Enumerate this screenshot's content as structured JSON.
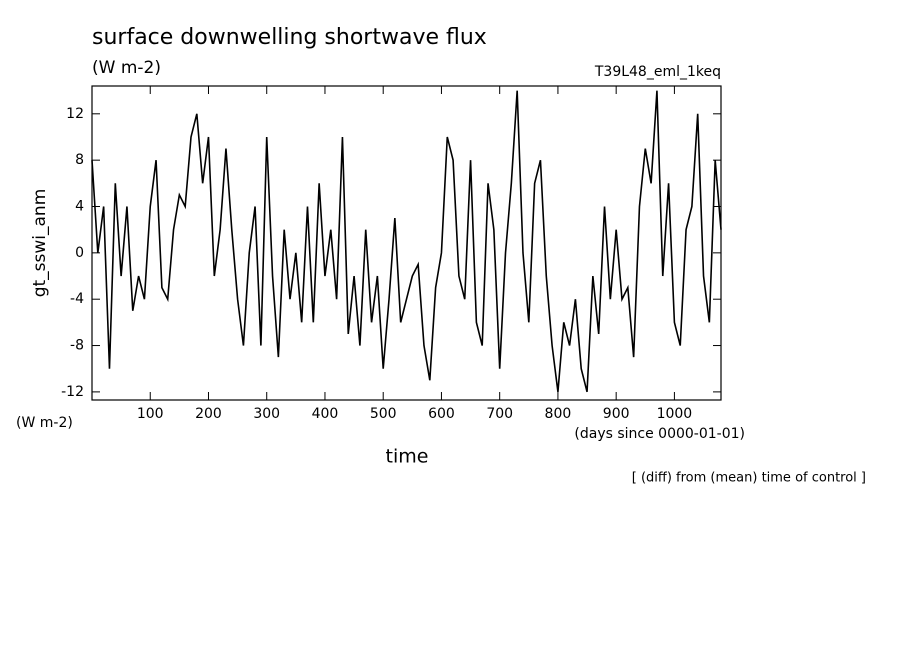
{
  "chart_data": {
    "type": "line",
    "title": "surface downwelling shortwave flux",
    "subtitle": "(W m-2)",
    "run_label": "T39L48_eml_1keq",
    "y_label": "gt_sswi_anm",
    "y_units": "(W m-2)",
    "x_label": "time",
    "x_units": "(days since 0000-01-01)",
    "note": "[ (diff) from (mean) time of control ]",
    "color": "#000000",
    "xlim": [
      0,
      1080
    ],
    "ylim": [
      -12.7,
      14.4
    ],
    "xticks": [
      100,
      200,
      300,
      400,
      500,
      600,
      700,
      800,
      900,
      1000
    ],
    "yticks": [
      -12,
      -8,
      -4,
      0,
      4,
      8,
      12
    ],
    "x": [
      0,
      10,
      20,
      30,
      40,
      50,
      60,
      70,
      80,
      90,
      100,
      110,
      120,
      130,
      140,
      150,
      160,
      170,
      180,
      190,
      200,
      210,
      220,
      230,
      240,
      250,
      260,
      270,
      280,
      290,
      300,
      310,
      320,
      330,
      340,
      350,
      360,
      370,
      380,
      390,
      400,
      410,
      420,
      430,
      440,
      450,
      460,
      470,
      480,
      490,
      500,
      510,
      520,
      530,
      540,
      550,
      560,
      570,
      580,
      590,
      600,
      610,
      620,
      630,
      640,
      650,
      660,
      670,
      680,
      690,
      700,
      710,
      720,
      730,
      740,
      750,
      760,
      770,
      780,
      790,
      800,
      810,
      820,
      830,
      840,
      850,
      860,
      870,
      880,
      890,
      900,
      910,
      920,
      930,
      940,
      950,
      960,
      970,
      980,
      990,
      1000,
      1010,
      1020,
      1030,
      1040,
      1050,
      1060,
      1070,
      1080
    ],
    "values": [
      8,
      0,
      4,
      -10,
      6,
      -2,
      4,
      -5,
      -2,
      -4,
      4,
      8,
      -3,
      -4,
      2,
      5,
      4,
      10,
      12,
      6,
      10,
      -2,
      2,
      9,
      2,
      -4,
      -8,
      0,
      4,
      -8,
      10,
      -2,
      -9,
      2,
      -4,
      0,
      -6,
      4,
      -6,
      6,
      -2,
      2,
      -4,
      10,
      -7,
      -2,
      -8,
      2,
      -6,
      -2,
      -10,
      -4,
      3,
      -6,
      -4,
      -2,
      -1,
      -8,
      -11,
      -3,
      0,
      10,
      8,
      -2,
      -4,
      8,
      -6,
      -8,
      6,
      2,
      -10,
      0,
      6,
      14,
      0,
      -6,
      6,
      8,
      -2,
      -8,
      -12,
      -6,
      -8,
      -4,
      -10,
      -12,
      -2,
      -7,
      4,
      -4,
      2,
      -4,
      -3,
      -9,
      4,
      9,
      6,
      14,
      -2,
      6,
      -6,
      -8,
      2,
      4,
      12,
      -2,
      -6,
      8,
      2
    ]
  }
}
